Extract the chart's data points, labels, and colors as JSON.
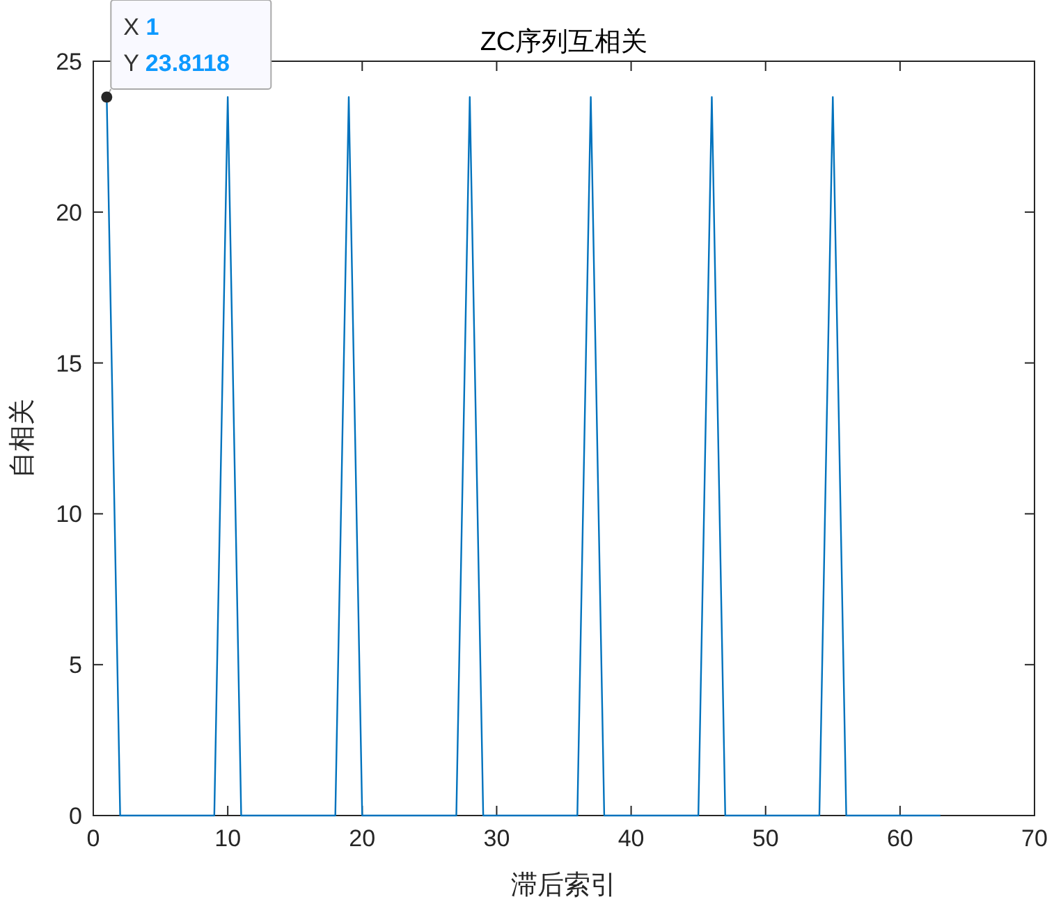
{
  "chart_data": {
    "type": "line",
    "title": "ZC序列互相关",
    "xlabel": "滞后索引",
    "ylabel": "自相关",
    "x": [
      1,
      2,
      3,
      4,
      5,
      6,
      7,
      8,
      9,
      10,
      11,
      12,
      13,
      14,
      15,
      16,
      17,
      18,
      19,
      20,
      21,
      22,
      23,
      24,
      25,
      26,
      27,
      28,
      29,
      30,
      31,
      32,
      33,
      34,
      35,
      36,
      37,
      38,
      39,
      40,
      41,
      42,
      43,
      44,
      45,
      46,
      47,
      48,
      49,
      50,
      51,
      52,
      53,
      54,
      55,
      56,
      57,
      58,
      59,
      60,
      61,
      62,
      63
    ],
    "series": [
      {
        "color": "#0072bd",
        "values": [
          23.8118,
          0,
          0,
          0,
          0,
          0,
          0,
          0,
          0,
          23.8118,
          0,
          0,
          0,
          0,
          0,
          0,
          0,
          0,
          23.8118,
          0,
          0,
          0,
          0,
          0,
          0,
          0,
          0,
          23.8118,
          0,
          0,
          0,
          0,
          0,
          0,
          0,
          0,
          23.8118,
          0,
          0,
          0,
          0,
          0,
          0,
          0,
          0,
          23.8118,
          0,
          0,
          0,
          0,
          0,
          0,
          0,
          0,
          23.8118,
          0,
          0,
          0,
          0,
          0,
          0,
          0,
          0
        ]
      }
    ],
    "xlim": [
      0,
      70
    ],
    "xticks": [
      0,
      10,
      20,
      30,
      40,
      50,
      60,
      70
    ],
    "ylim": [
      0,
      25
    ],
    "yticks": [
      0,
      5,
      10,
      15,
      20,
      25
    ],
    "grid": false,
    "marker": "none",
    "line_style": "solid",
    "annotations": [
      {
        "text": "X 1\nY 23.8118",
        "x": 1,
        "y": 23.8118
      }
    ]
  }
}
